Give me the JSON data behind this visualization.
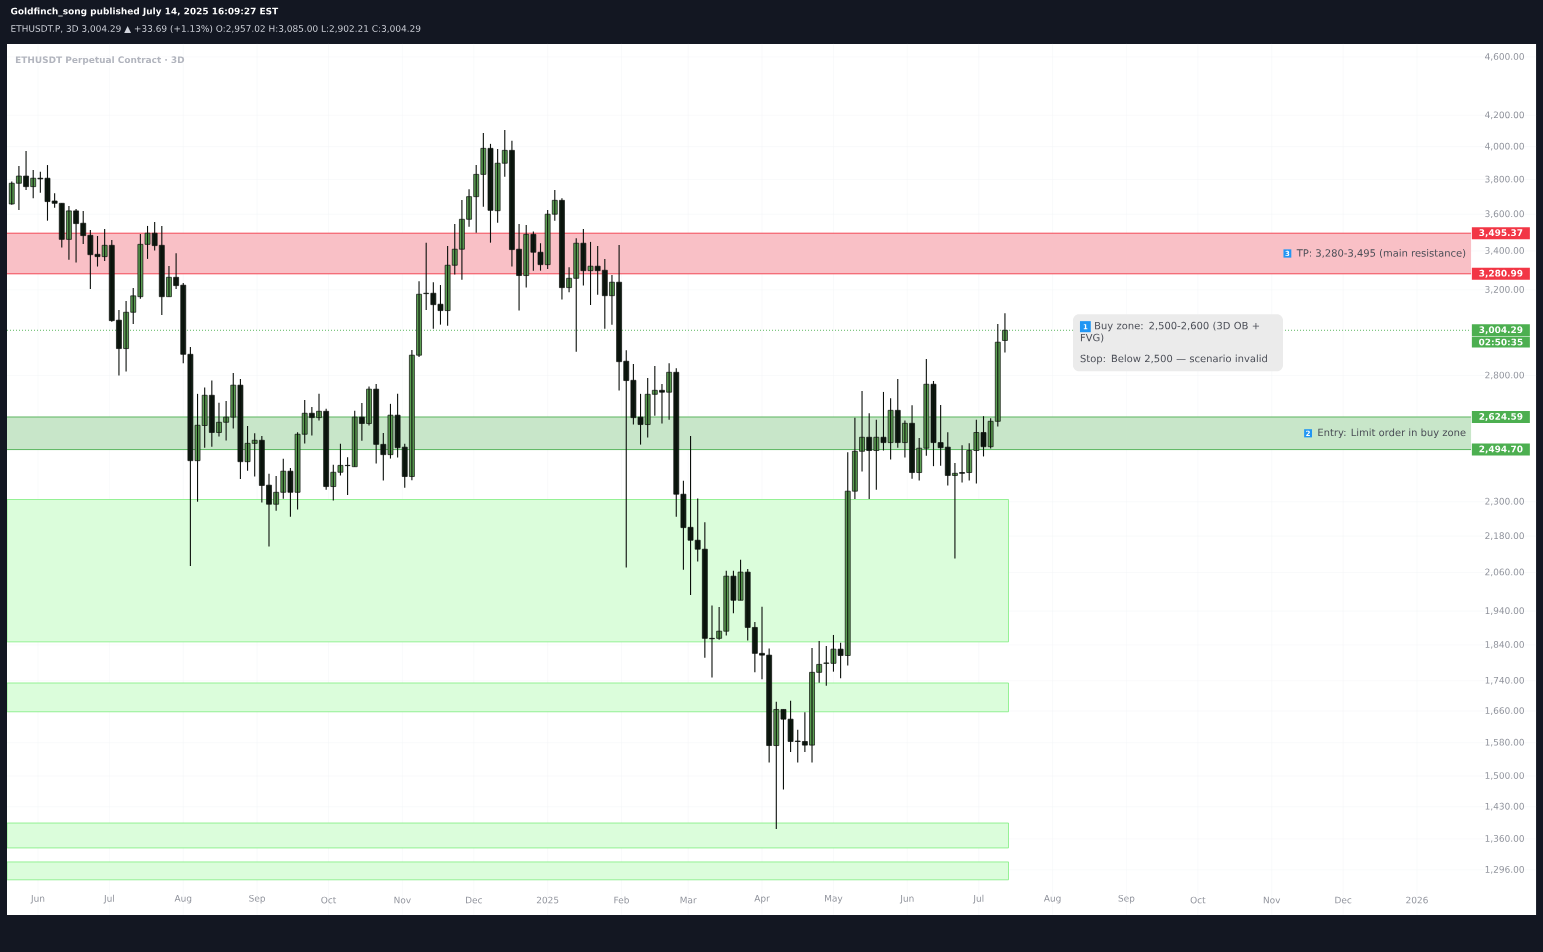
{
  "chart_data": {
    "type": "candlestick",
    "title": "ETHUSDT Perpetual Contract · 3D",
    "x": [
      "2024-05-21",
      "2024-05-24",
      "2024-05-27",
      "2024-05-30",
      "2024-06-02",
      "2024-06-05",
      "2024-06-08",
      "2024-06-11",
      "2024-06-14",
      "2024-06-17",
      "2024-06-20",
      "2024-06-23",
      "2024-06-26",
      "2024-06-29",
      "2024-07-02",
      "2024-07-05",
      "2024-07-08",
      "2024-07-11",
      "2024-07-14",
      "2024-07-17",
      "2024-07-20",
      "2024-07-23",
      "2024-07-26",
      "2024-07-29",
      "2024-08-01",
      "2024-08-04",
      "2024-08-07",
      "2024-08-10",
      "2024-08-13",
      "2024-08-16",
      "2024-08-19",
      "2024-08-22",
      "2024-08-25",
      "2024-08-28",
      "2024-08-31",
      "2024-09-03",
      "2024-09-06",
      "2024-09-09",
      "2024-09-12",
      "2024-09-15",
      "2024-09-18",
      "2024-09-21",
      "2024-09-24",
      "2024-09-27",
      "2024-09-30",
      "2024-10-03",
      "2024-10-06",
      "2024-10-09",
      "2024-10-12",
      "2024-10-15",
      "2024-10-18",
      "2024-10-21",
      "2024-10-24",
      "2024-10-27",
      "2024-10-30",
      "2024-11-02",
      "2024-11-05",
      "2024-11-08",
      "2024-11-11",
      "2024-11-14",
      "2024-11-17",
      "2024-11-20",
      "2024-11-23",
      "2024-11-26",
      "2024-11-29",
      "2024-12-02",
      "2024-12-05",
      "2024-12-08",
      "2024-12-11",
      "2024-12-14",
      "2024-12-17",
      "2024-12-20",
      "2024-12-23",
      "2024-12-26",
      "2024-12-29",
      "2025-01-01",
      "2025-01-04",
      "2025-01-07",
      "2025-01-10",
      "2025-01-13",
      "2025-01-16",
      "2025-01-19",
      "2025-01-22",
      "2025-01-25",
      "2025-01-28",
      "2025-01-31",
      "2025-02-03",
      "2025-02-06",
      "2025-02-09",
      "2025-02-12",
      "2025-02-15",
      "2025-02-18",
      "2025-02-21",
      "2025-02-24",
      "2025-02-27",
      "2025-03-02",
      "2025-03-05",
      "2025-03-08",
      "2025-03-11",
      "2025-03-14",
      "2025-03-17",
      "2025-03-20",
      "2025-03-23",
      "2025-03-26",
      "2025-03-29",
      "2025-04-01",
      "2025-04-04",
      "2025-04-07",
      "2025-04-10",
      "2025-04-13",
      "2025-04-16",
      "2025-04-19",
      "2025-04-22",
      "2025-04-25",
      "2025-04-28",
      "2025-05-01",
      "2025-05-04",
      "2025-05-07",
      "2025-05-10",
      "2025-05-13",
      "2025-05-16",
      "2025-05-19",
      "2025-05-22",
      "2025-05-25",
      "2025-05-28",
      "2025-05-31",
      "2025-06-03",
      "2025-06-06",
      "2025-06-09",
      "2025-06-12",
      "2025-06-15",
      "2025-06-18",
      "2025-06-21",
      "2025-06-24",
      "2025-06-27",
      "2025-06-30",
      "2025-07-03",
      "2025-07-06",
      "2025-07-09",
      "2025-07-12"
    ],
    "ohlc": [
      [
        3658,
        3788,
        3653,
        3778
      ],
      [
        3778,
        3881,
        3624,
        3821
      ],
      [
        3821,
        3973,
        3739,
        3758
      ],
      [
        3758,
        3857,
        3691,
        3808
      ],
      [
        3808,
        3847,
        3723,
        3804
      ],
      [
        3808,
        3887,
        3564,
        3672
      ],
      [
        3675,
        3720,
        3637,
        3662
      ],
      [
        3662,
        3662,
        3418,
        3462
      ],
      [
        3462,
        3647,
        3353,
        3619
      ],
      [
        3619,
        3630,
        3339,
        3548
      ],
      [
        3550,
        3619,
        3437,
        3482
      ],
      [
        3484,
        3513,
        3204,
        3380
      ],
      [
        3382,
        3480,
        3318,
        3370
      ],
      [
        3370,
        3518,
        3347,
        3430
      ],
      [
        3430,
        3459,
        3045,
        3050
      ],
      [
        3052,
        3101,
        2800,
        2920
      ],
      [
        2920,
        3145,
        2817,
        3090
      ],
      [
        3090,
        3209,
        3034,
        3170
      ],
      [
        3166,
        3491,
        3156,
        3435
      ],
      [
        3435,
        3535,
        3358,
        3495
      ],
      [
        3495,
        3557,
        3402,
        3428
      ],
      [
        3430,
        3535,
        3077,
        3166
      ],
      [
        3166,
        3321,
        3166,
        3263
      ],
      [
        3263,
        3388,
        3204,
        3221
      ],
      [
        3223,
        3234,
        2854,
        2894
      ],
      [
        2894,
        2927,
        2081,
        2452
      ],
      [
        2452,
        2721,
        2300,
        2591
      ],
      [
        2590,
        2748,
        2502,
        2715
      ],
      [
        2715,
        2778,
        2506,
        2562
      ],
      [
        2562,
        2684,
        2546,
        2603
      ],
      [
        2603,
        2691,
        2530,
        2624
      ],
      [
        2624,
        2811,
        2578,
        2758
      ],
      [
        2758,
        2785,
        2383,
        2448
      ],
      [
        2448,
        2588,
        2414,
        2519
      ],
      [
        2519,
        2559,
        2392,
        2531
      ],
      [
        2531,
        2548,
        2297,
        2359
      ],
      [
        2360,
        2402,
        2145,
        2291
      ],
      [
        2291,
        2394,
        2268,
        2334
      ],
      [
        2334,
        2459,
        2311,
        2412
      ],
      [
        2412,
        2424,
        2247,
        2334
      ],
      [
        2334,
        2563,
        2272,
        2555
      ],
      [
        2555,
        2695,
        2518,
        2640
      ],
      [
        2640,
        2666,
        2550,
        2622
      ],
      [
        2622,
        2721,
        2610,
        2648
      ],
      [
        2648,
        2658,
        2343,
        2355
      ],
      [
        2355,
        2436,
        2304,
        2408
      ],
      [
        2408,
        2517,
        2396,
        2434
      ],
      [
        2434,
        2465,
        2324,
        2433
      ],
      [
        2429,
        2650,
        2429,
        2624
      ],
      [
        2624,
        2683,
        2529,
        2598
      ],
      [
        2598,
        2753,
        2590,
        2741
      ],
      [
        2741,
        2763,
        2441,
        2515
      ],
      [
        2515,
        2560,
        2377,
        2475
      ],
      [
        2475,
        2679,
        2460,
        2632
      ],
      [
        2632,
        2721,
        2464,
        2502
      ],
      [
        2504,
        2517,
        2351,
        2392
      ],
      [
        2392,
        2914,
        2378,
        2890
      ],
      [
        2890,
        3243,
        2882,
        3178
      ],
      [
        3181,
        3443,
        3101,
        3183
      ],
      [
        3183,
        3238,
        3012,
        3127
      ],
      [
        3129,
        3224,
        3031,
        3098
      ],
      [
        3098,
        3426,
        3026,
        3325
      ],
      [
        3325,
        3546,
        3277,
        3409
      ],
      [
        3409,
        3681,
        3251,
        3572
      ],
      [
        3572,
        3743,
        3531,
        3700
      ],
      [
        3700,
        3887,
        3498,
        3831
      ],
      [
        3831,
        4086,
        3643,
        3990
      ],
      [
        3990,
        4017,
        3444,
        3622
      ],
      [
        3620,
        3986,
        3553,
        3898
      ],
      [
        3898,
        4105,
        3817,
        3977
      ],
      [
        3977,
        4036,
        3318,
        3407
      ],
      [
        3409,
        3546,
        3098,
        3272
      ],
      [
        3272,
        3540,
        3211,
        3489
      ],
      [
        3489,
        3504,
        3297,
        3393
      ],
      [
        3393,
        3441,
        3297,
        3328
      ],
      [
        3328,
        3624,
        3306,
        3600
      ],
      [
        3600,
        3739,
        3564,
        3679
      ],
      [
        3679,
        3691,
        3152,
        3211
      ],
      [
        3211,
        3314,
        3188,
        3258
      ],
      [
        3258,
        3468,
        2906,
        3441
      ],
      [
        3441,
        3518,
        3221,
        3297
      ],
      [
        3297,
        3448,
        3125,
        3320
      ],
      [
        3320,
        3426,
        3176,
        3297
      ],
      [
        3299,
        3358,
        3012,
        3171
      ],
      [
        3171,
        3275,
        3031,
        3238
      ],
      [
        3238,
        3432,
        2735,
        2861
      ],
      [
        2863,
        2912,
        2076,
        2778
      ],
      [
        2779,
        2851,
        2594,
        2622
      ],
      [
        2624,
        2721,
        2514,
        2594
      ],
      [
        2594,
        2789,
        2542,
        2719
      ],
      [
        2719,
        2842,
        2630,
        2736
      ],
      [
        2736,
        2763,
        2598,
        2728
      ],
      [
        2728,
        2854,
        2613,
        2814
      ],
      [
        2814,
        2832,
        2247,
        2327
      ],
      [
        2327,
        2376,
        2069,
        2209
      ],
      [
        2210,
        2548,
        1989,
        2166
      ],
      [
        2166,
        2312,
        2095,
        2136
      ],
      [
        2136,
        2228,
        1804,
        1859
      ],
      [
        1859,
        1957,
        1749,
        1858
      ],
      [
        1859,
        1952,
        1855,
        1880
      ],
      [
        1880,
        2065,
        1867,
        2048
      ],
      [
        2048,
        2065,
        1933,
        1973
      ],
      [
        1973,
        2101,
        1973,
        2061
      ],
      [
        2061,
        2071,
        1853,
        1891
      ],
      [
        1891,
        1907,
        1763,
        1816
      ],
      [
        1816,
        1953,
        1744,
        1811
      ],
      [
        1811,
        1830,
        1532,
        1573
      ],
      [
        1573,
        1684,
        1381,
        1664
      ],
      [
        1664,
        1664,
        1469,
        1639
      ],
      [
        1639,
        1687,
        1557,
        1583
      ],
      [
        1584,
        1612,
        1532,
        1583
      ],
      [
        1583,
        1657,
        1557,
        1574
      ],
      [
        1574,
        1831,
        1532,
        1763
      ],
      [
        1763,
        1851,
        1735,
        1785
      ],
      [
        1788,
        1837,
        1727,
        1789
      ],
      [
        1788,
        1869,
        1765,
        1828
      ],
      [
        1828,
        1846,
        1747,
        1810
      ],
      [
        1810,
        2484,
        1782,
        2338
      ],
      [
        2338,
        2622,
        2310,
        2488
      ],
      [
        2488,
        2733,
        2411,
        2543
      ],
      [
        2543,
        2640,
        2310,
        2491
      ],
      [
        2491,
        2613,
        2343,
        2543
      ],
      [
        2543,
        2729,
        2491,
        2522
      ],
      [
        2522,
        2702,
        2456,
        2652
      ],
      [
        2652,
        2785,
        2502,
        2522
      ],
      [
        2522,
        2610,
        2464,
        2599
      ],
      [
        2599,
        2673,
        2384,
        2407
      ],
      [
        2407,
        2540,
        2377,
        2500
      ],
      [
        2500,
        2873,
        2471,
        2762
      ],
      [
        2762,
        2776,
        2431,
        2522
      ],
      [
        2522,
        2674,
        2433,
        2502
      ],
      [
        2504,
        2563,
        2359,
        2396
      ],
      [
        2396,
        2443,
        2105,
        2404
      ],
      [
        2407,
        2512,
        2370,
        2404
      ],
      [
        2407,
        2519,
        2377,
        2491
      ],
      [
        2491,
        2613,
        2366,
        2562
      ],
      [
        2562,
        2628,
        2468,
        2506
      ],
      [
        2506,
        2619,
        2499,
        2607
      ],
      [
        2607,
        3034,
        2586,
        2949
      ],
      [
        2957.02,
        3085.0,
        2902.21,
        3004.29
      ]
    ],
    "log": true,
    "grid": true,
    "xlim": [
      "2024-05-19",
      "2026-02-20"
    ],
    "ylim": [
      1208,
      4694
    ],
    "xticks": [
      {
        "value": "2024-06-01",
        "label": "Jun"
      },
      {
        "value": "2024-07-01",
        "label": "Jul"
      },
      {
        "value": "2024-08-01",
        "label": "Aug"
      },
      {
        "value": "2024-09-01",
        "label": "Sep"
      },
      {
        "value": "2024-10-01",
        "label": "Oct"
      },
      {
        "value": "2024-11-01",
        "label": "Nov"
      },
      {
        "value": "2024-12-01",
        "label": "Dec"
      },
      {
        "value": "2025-01-01",
        "label": "2025"
      },
      {
        "value": "2025-02-01",
        "label": "Feb"
      },
      {
        "value": "2025-03-01",
        "label": "Mar"
      },
      {
        "value": "2025-04-01",
        "label": "Apr"
      },
      {
        "value": "2025-05-01",
        "label": "May"
      },
      {
        "value": "2025-06-01",
        "label": "Jun"
      },
      {
        "value": "2025-07-01",
        "label": "Jul"
      },
      {
        "value": "2025-08-01",
        "label": "Aug"
      },
      {
        "value": "2025-09-01",
        "label": "Sep"
      },
      {
        "value": "2025-10-01",
        "label": "Oct"
      },
      {
        "value": "2025-11-01",
        "label": "Nov"
      },
      {
        "value": "2025-12-01",
        "label": "Dec"
      },
      {
        "value": "2026-01-01",
        "label": "2026"
      }
    ],
    "yticks": [
      {
        "value": 4600,
        "label": "4,600.00"
      },
      {
        "value": 4200,
        "label": "4,200.00"
      },
      {
        "value": 4000,
        "label": "4,000.00"
      },
      {
        "value": 3800,
        "label": "3,800.00"
      },
      {
        "value": 3600,
        "label": "3,600.00"
      },
      {
        "value": 3400,
        "label": "3,400.00"
      },
      {
        "value": 3200,
        "label": "3,200.00"
      },
      {
        "value": 2800,
        "label": "2,800.00"
      },
      {
        "value": 2300,
        "label": "2,300.00"
      },
      {
        "value": 2180,
        "label": "2,180.00"
      },
      {
        "value": 2060,
        "label": "2,060.00"
      },
      {
        "value": 1940,
        "label": "1,940.00"
      },
      {
        "value": 1840,
        "label": "1,840.00"
      },
      {
        "value": 1740,
        "label": "1,740.00"
      },
      {
        "value": 1660,
        "label": "1,660.00"
      },
      {
        "value": 1580,
        "label": "1,580.00"
      },
      {
        "value": 1500,
        "label": "1,500.00"
      },
      {
        "value": 1430,
        "label": "1,430.00"
      },
      {
        "value": 1360,
        "label": "1,360.00"
      },
      {
        "value": 1296,
        "label": "1,296.00"
      }
    ],
    "bands": [
      {
        "axis": "y",
        "from": 2494.7,
        "to": 2624.59,
        "label": "Entry: Limit order in buy zone",
        "color": "#c8e6c9"
      },
      {
        "axis": "y",
        "from": 3280.99,
        "to": 3495.37,
        "label": "TP: 3,280-3,495 (main resistance)",
        "color": "#f9c0c6"
      },
      {
        "axis": "y",
        "from": 1849,
        "to": 2308,
        "color": "#dbfddb"
      },
      {
        "axis": "y",
        "from": 1658,
        "to": 1734,
        "color": "#dbfddb"
      },
      {
        "axis": "y",
        "from": 1341,
        "to": 1394,
        "color": "#dbfddb"
      },
      {
        "axis": "y",
        "from": 1276,
        "to": 1312,
        "color": "#dbfddb"
      }
    ],
    "ref_lines": [
      {
        "axis": "y",
        "value": 3004.29,
        "label": "3,004.29",
        "color": "#4caf50",
        "line_style": "dotted"
      },
      {
        "axis": "y",
        "value": 3495.37,
        "label": "3,495.37",
        "color": "#f23645",
        "line_style": "solid"
      },
      {
        "axis": "y",
        "value": 3280.99,
        "label": "3,280.99",
        "color": "#f23645",
        "line_style": "solid"
      },
      {
        "axis": "y",
        "value": 2624.59,
        "label": "2,624.59",
        "color": "#4caf50",
        "line_style": "solid"
      },
      {
        "axis": "y",
        "value": 2494.7,
        "label": "2,494.70",
        "color": "#4caf50",
        "line_style": "solid"
      }
    ],
    "annotations": [
      "Goldfinch_song published July 14, 2025 16:09:27 EST",
      "ETHUSDT.P, 3D  3,004.29 ▲ +33.69 (+1.13%)  O:2,957.02  H:3,085.00  L:2,902.21  C:3,004.29",
      "1",
      "Buy zone: 2,500-2,600 (3D OB + FVG)",
      "Stop: Below 2,500 — scenario invalid",
      "2",
      "3",
      "02:50:35"
    ]
  }
}
